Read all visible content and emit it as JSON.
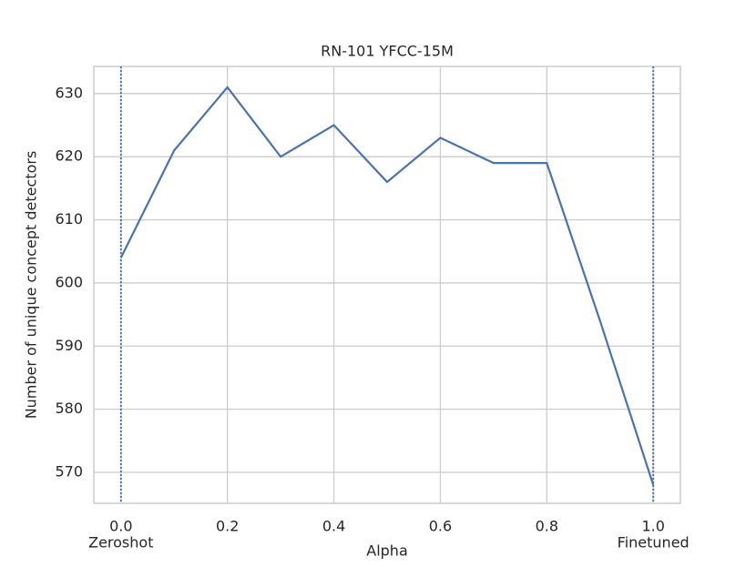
{
  "chart_data": {
    "type": "line",
    "title": "RN-101 YFCC-15M",
    "xlabel": "Alpha",
    "ylabel": "Number of unique concept detectors",
    "x": [
      0.0,
      0.1,
      0.2,
      0.3,
      0.4,
      0.5,
      0.6,
      0.7,
      0.8,
      0.9,
      1.0
    ],
    "series": [
      {
        "color": "#4c72b0",
        "values": [
          604,
          621,
          631,
          620,
          625,
          616,
          623,
          619,
          619,
          594,
          568
        ]
      }
    ],
    "xlim": [
      -0.051,
      1.051
    ],
    "ylim": [
      565.1,
      634.3
    ],
    "xticks": [
      {
        "value": 0,
        "label": "0.0"
      },
      0.2,
      0.4,
      0.6,
      0.8,
      {
        "value": 1,
        "label": "1.0"
      }
    ],
    "yticks": [
      570,
      580,
      590,
      600,
      610,
      620,
      630
    ],
    "grid": true,
    "annotations": [
      {
        "x": 0,
        "label": "Zeroshot"
      },
      {
        "x": 1,
        "label": "Finetuned"
      }
    ]
  }
}
